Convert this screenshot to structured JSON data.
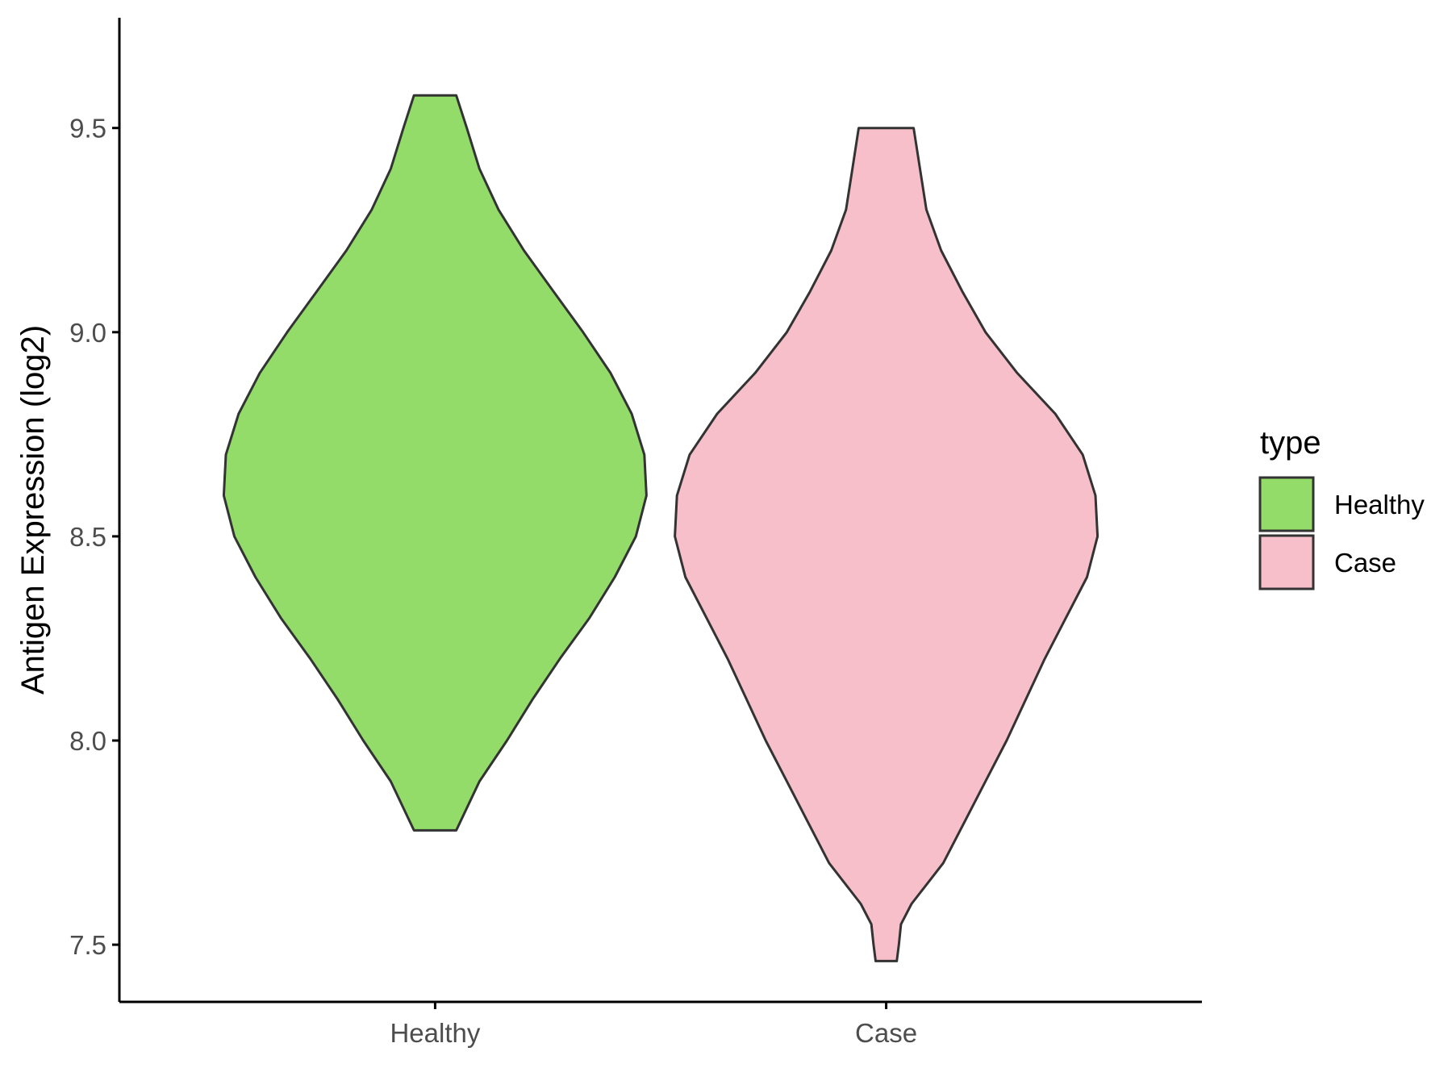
{
  "chart_data": {
    "type": "violin",
    "title": "",
    "xlabel": "",
    "ylabel": "Antigen Expression (log2)",
    "ylim": [
      7.36,
      9.77
    ],
    "yticks": [
      "7.5",
      "8.0",
      "8.5",
      "9.0",
      "9.5"
    ],
    "categories": [
      "Healthy",
      "Case"
    ],
    "grid": false,
    "legend": {
      "title": "type",
      "placement": "right",
      "entries": [
        "Healthy",
        "Case"
      ]
    },
    "series": [
      {
        "name": "Healthy",
        "color": "#93dc6a",
        "min": 7.78,
        "max": 9.58,
        "density": [
          [
            7.78,
            0.1
          ],
          [
            7.9,
            0.21
          ],
          [
            8.0,
            0.34
          ],
          [
            8.1,
            0.46
          ],
          [
            8.2,
            0.59
          ],
          [
            8.3,
            0.73
          ],
          [
            8.4,
            0.85
          ],
          [
            8.5,
            0.95
          ],
          [
            8.6,
            1.0
          ],
          [
            8.7,
            0.99
          ],
          [
            8.8,
            0.93
          ],
          [
            8.9,
            0.83
          ],
          [
            9.0,
            0.7
          ],
          [
            9.1,
            0.56
          ],
          [
            9.2,
            0.42
          ],
          [
            9.3,
            0.3
          ],
          [
            9.4,
            0.21
          ],
          [
            9.5,
            0.15
          ],
          [
            9.58,
            0.1
          ]
        ]
      },
      {
        "name": "Case",
        "color": "#f7bfca",
        "min": 7.46,
        "max": 9.5,
        "density": [
          [
            7.46,
            0.05
          ],
          [
            7.5,
            0.06
          ],
          [
            7.55,
            0.07
          ],
          [
            7.6,
            0.12
          ],
          [
            7.7,
            0.27
          ],
          [
            7.8,
            0.37
          ],
          [
            7.9,
            0.47
          ],
          [
            8.0,
            0.57
          ],
          [
            8.1,
            0.66
          ],
          [
            8.2,
            0.75
          ],
          [
            8.3,
            0.85
          ],
          [
            8.4,
            0.95
          ],
          [
            8.5,
            1.0
          ],
          [
            8.6,
            0.99
          ],
          [
            8.7,
            0.93
          ],
          [
            8.8,
            0.8
          ],
          [
            8.9,
            0.62
          ],
          [
            9.0,
            0.47
          ],
          [
            9.1,
            0.36
          ],
          [
            9.2,
            0.26
          ],
          [
            9.3,
            0.19
          ],
          [
            9.4,
            0.16
          ],
          [
            9.5,
            0.13
          ]
        ]
      }
    ]
  }
}
